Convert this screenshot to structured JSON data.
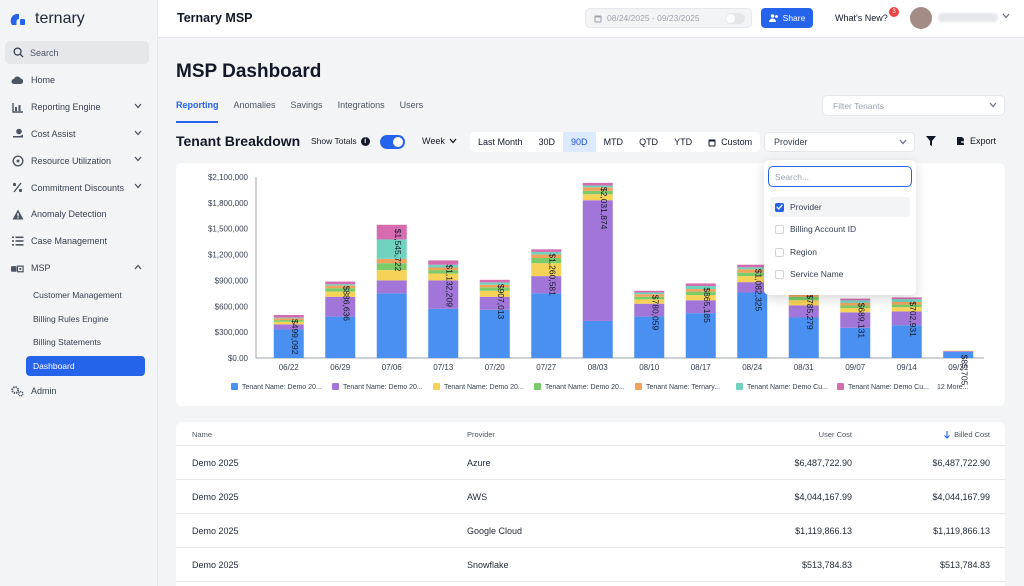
{
  "app": {
    "logo_text": "ternary",
    "title": "Ternary MSP",
    "date_range": "08/24/2025 - 09/23/2025",
    "share_label": "Share",
    "whats_new_label": "What's New?",
    "whats_new_count": "3"
  },
  "sidebar": {
    "search_label": "Search",
    "items": [
      {
        "label": "Home",
        "icon": "cloud-icon"
      },
      {
        "label": "Reporting Engine",
        "icon": "chart-icon",
        "expandable": true
      },
      {
        "label": "Cost Assist",
        "icon": "dollar-hand-icon",
        "expandable": true
      },
      {
        "label": "Resource Utilization",
        "icon": "gauge-icon",
        "expandable": true
      },
      {
        "label": "Commitment Discounts",
        "icon": "percent-icon",
        "expandable": true
      },
      {
        "label": "Anomaly Detection",
        "icon": "warning-icon"
      },
      {
        "label": "Case Management",
        "icon": "list-icon"
      },
      {
        "label": "MSP",
        "icon": "msp-icon",
        "expandable": true
      }
    ],
    "msp_children": [
      "Customer Management",
      "Billing Rules Engine",
      "Billing Statements",
      "Dashboard"
    ],
    "admin_label": "Admin"
  },
  "main": {
    "page_title": "MSP Dashboard",
    "tabs": [
      "Reporting",
      "Anomalies",
      "Savings",
      "Integrations",
      "Users"
    ],
    "filter_tenants_placeholder": "Filter Tenants",
    "section_title": "Tenant Breakdown",
    "show_totals_label": "Show Totals",
    "granularity": "Week",
    "ranges": [
      "Last Month",
      "30D",
      "90D",
      "MTD",
      "QTD",
      "YTD",
      "Custom"
    ],
    "active_range": "90D",
    "group_by": "Provider",
    "export_label": "Export"
  },
  "dropdown": {
    "search_placeholder": "Search...",
    "options": [
      {
        "label": "Provider",
        "checked": true
      },
      {
        "label": "Billing Account ID",
        "checked": false
      },
      {
        "label": "Region",
        "checked": false
      },
      {
        "label": "Service Name",
        "checked": false
      }
    ]
  },
  "chart_data": {
    "type": "bar",
    "stacked": true,
    "categories": [
      "06/22",
      "06/29",
      "07/06",
      "07/13",
      "07/20",
      "07/27",
      "08/03",
      "08/10",
      "08/17",
      "08/24",
      "08/31",
      "09/07",
      "09/14",
      "09/21"
    ],
    "totals": [
      499092,
      886636,
      1545722,
      1132209,
      907013,
      1260581,
      2031874,
      780059,
      865185,
      1082325,
      785279,
      689131,
      702931,
      85705
    ],
    "total_labels": [
      "$499,092",
      "$886,636",
      "$1,545,722",
      "$1,132,209",
      "$907,013",
      "$1,260,581",
      "$2,031,874",
      "$780,059",
      "$865,185",
      "$1,082,325",
      "$785,279",
      "$689,131",
      "$702,931",
      "$85,705"
    ],
    "yticks": [
      "$0.00",
      "$300,000",
      "$600,000",
      "$900,000",
      "$1,200,000",
      "$1,500,000",
      "$1,800,000",
      "$2,100,000"
    ],
    "ylim": [
      0,
      2100000
    ],
    "series": [
      {
        "name": "Tenant Name: Demo 20...",
        "color": "#4a90f0",
        "values": [
          330000,
          480000,
          750000,
          570000,
          560000,
          750000,
          430000,
          480000,
          520000,
          760000,
          470000,
          350000,
          380000,
          70000
        ]
      },
      {
        "name": "Tenant Name: Demo 20...",
        "color": "#a276d8",
        "values": [
          60000,
          230000,
          150000,
          330000,
          150000,
          200000,
          1400000,
          150000,
          150000,
          120000,
          140000,
          180000,
          160000,
          10000
        ]
      },
      {
        "name": "Tenant Name: Demo 20...",
        "color": "#f6d257",
        "values": [
          30000,
          60000,
          120000,
          80000,
          70000,
          150000,
          70000,
          50000,
          60000,
          70000,
          60000,
          50000,
          50000,
          5705
        ]
      },
      {
        "name": "Tenant Name: Demo 20...",
        "color": "#7ccb6a",
        "values": [
          20000,
          40000,
          80000,
          40000,
          40000,
          60000,
          40000,
          30000,
          40000,
          40000,
          40000,
          30000,
          30000,
          0
        ]
      },
      {
        "name": "Tenant Name: Ternary...",
        "color": "#f3a25b",
        "values": [
          20000,
          30000,
          50000,
          30000,
          30000,
          40000,
          40000,
          30000,
          30000,
          40000,
          30000,
          30000,
          30000,
          0
        ]
      },
      {
        "name": "Tenant Name: Demo Cu...",
        "color": "#6fd3c0",
        "values": [
          9092,
          16636,
          225722,
          32209,
          27013,
          30581,
          21874,
          20059,
          35185,
          22325,
          25279,
          29131,
          32931,
          0
        ]
      },
      {
        "name": "Tenant Name: Demo Cu...",
        "color": "#d66bb0",
        "values": [
          30000,
          30000,
          170000,
          50000,
          30000,
          30000,
          30000,
          20000,
          30000,
          30000,
          20000,
          20000,
          20000,
          0
        ]
      }
    ],
    "legend_more": "12 More..."
  },
  "table": {
    "columns": [
      "Name",
      "Provider",
      "User Cost",
      "Billed Cost"
    ],
    "rows": [
      {
        "name": "Demo 2025",
        "provider": "Azure",
        "user_cost": "$6,487,722.90",
        "billed_cost": "$6,487,722.90"
      },
      {
        "name": "Demo 2025",
        "provider": "AWS",
        "user_cost": "$4,044,167.99",
        "billed_cost": "$4,044,167.99"
      },
      {
        "name": "Demo 2025",
        "provider": "Google Cloud",
        "user_cost": "$1,119,866.13",
        "billed_cost": "$1,119,866.13"
      },
      {
        "name": "Demo 2025",
        "provider": "Snowflake",
        "user_cost": "$513,784.83",
        "billed_cost": "$513,784.83"
      }
    ]
  }
}
